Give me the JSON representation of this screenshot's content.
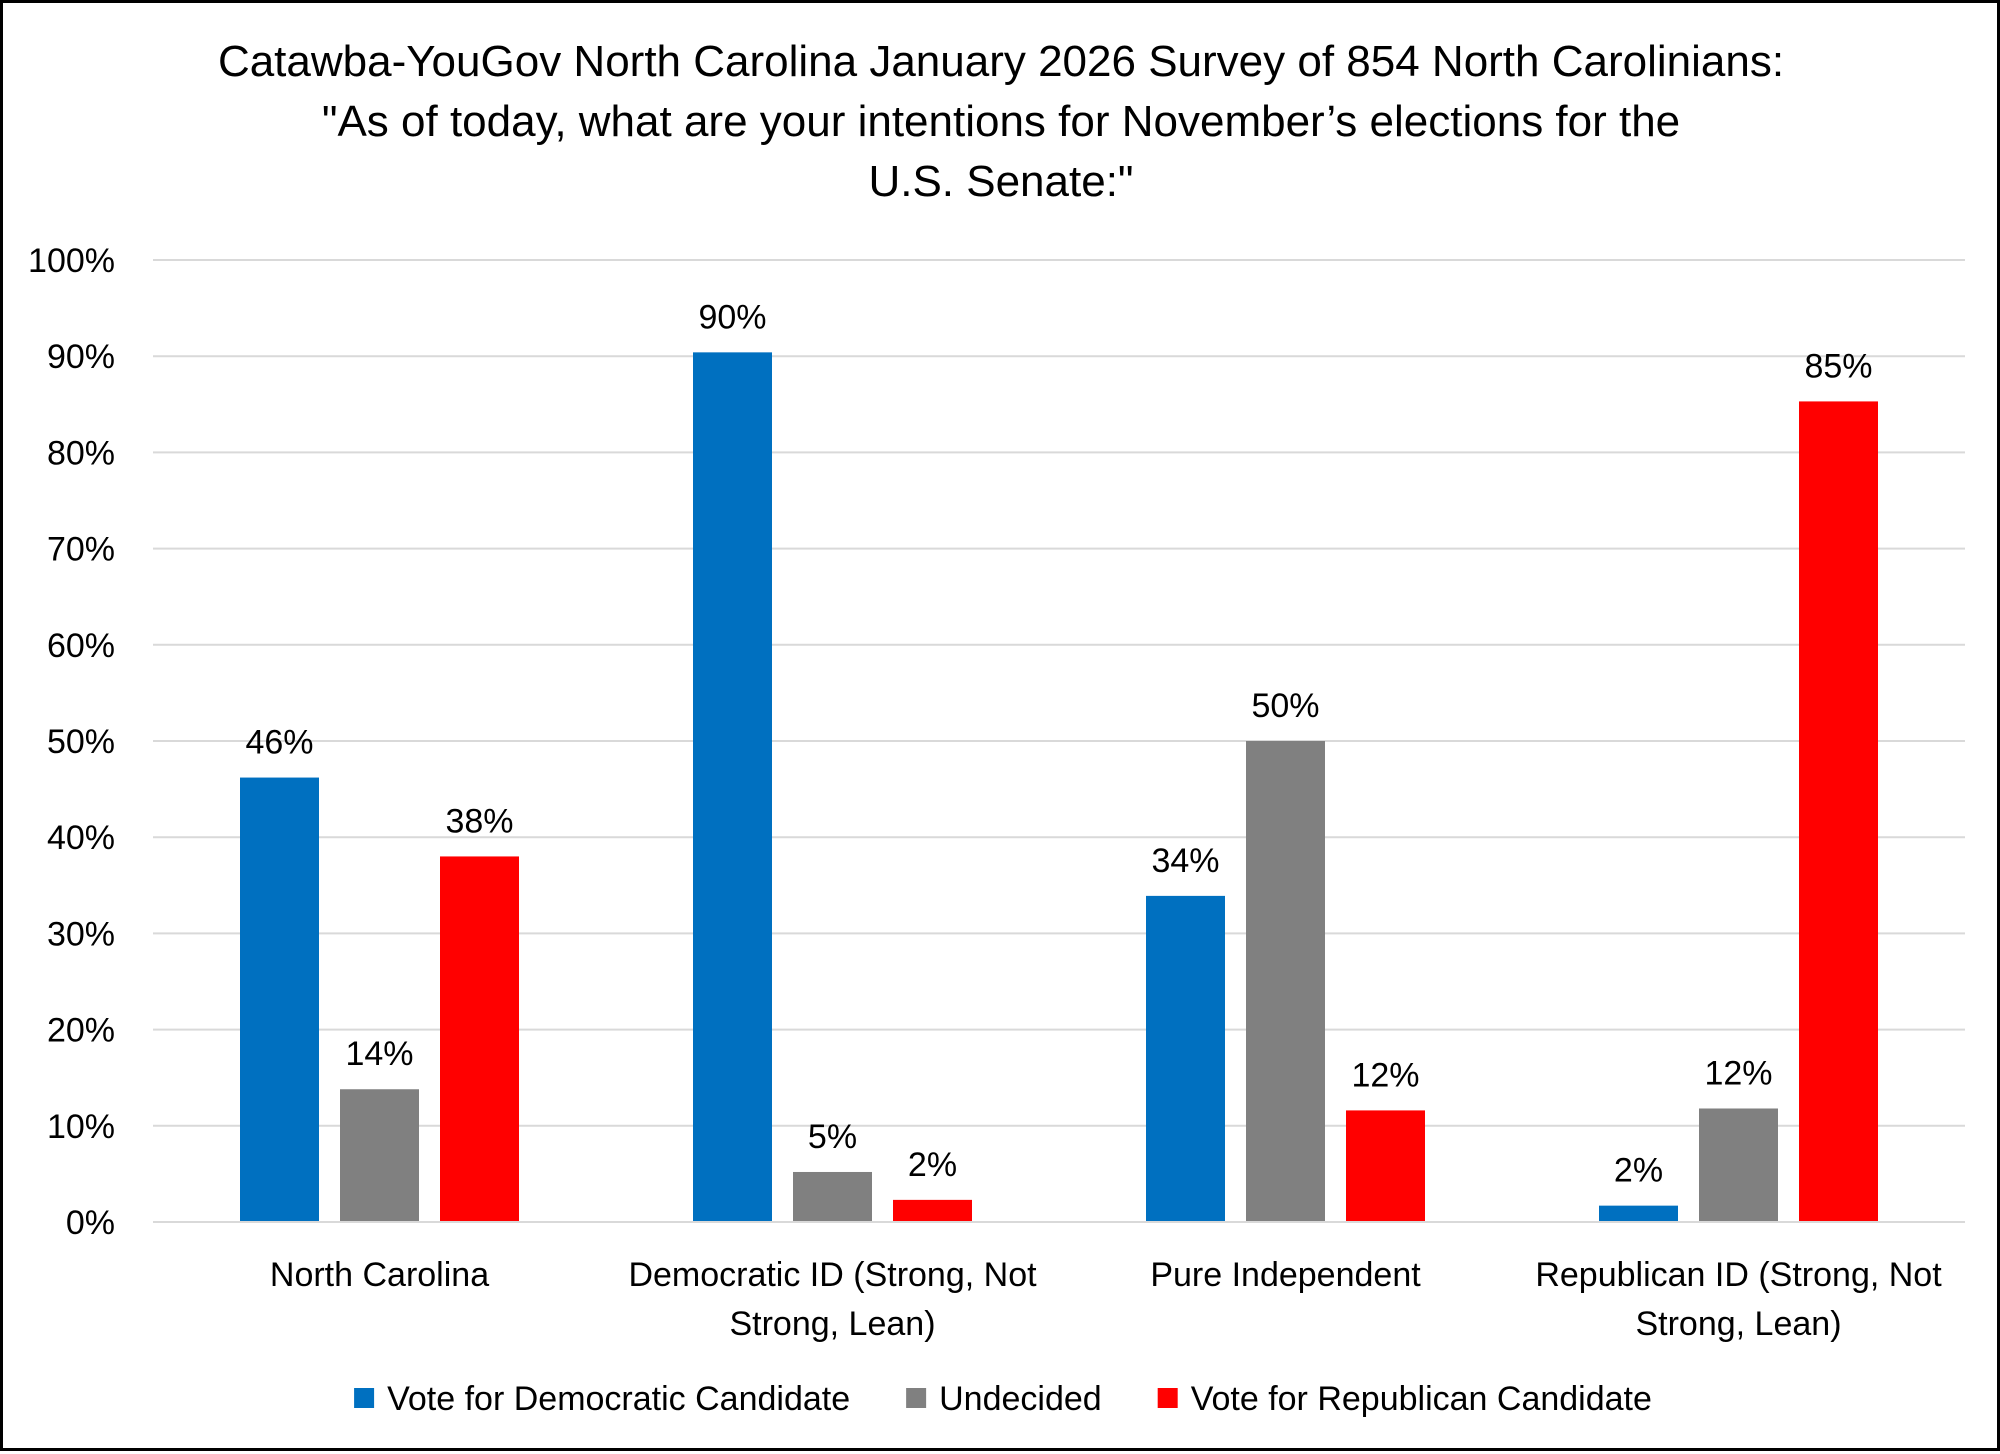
{
  "chart_data": {
    "type": "bar",
    "title": [
      "Catawba-YouGov North Carolina January 2026 Survey of 854 North Carolinians:",
      "\"As of today, what are your intentions for November’s elections for the",
      "U.S. Senate:\""
    ],
    "categories": [
      [
        "North Carolina"
      ],
      [
        "Democratic ID (Strong, Not",
        "Strong, Lean)"
      ],
      [
        "Pure Independent"
      ],
      [
        "Republican ID (Strong, Not",
        "Strong, Lean)"
      ]
    ],
    "series": [
      {
        "name": "Vote for Democratic Candidate",
        "color": "#0070C0",
        "values": [
          46.2,
          90.4,
          33.9,
          1.7
        ],
        "labels": [
          "46%",
          "90%",
          "34%",
          "2%"
        ]
      },
      {
        "name": "Undecided",
        "color": "#808080",
        "values": [
          13.8,
          5.2,
          50.0,
          11.8
        ],
        "labels": [
          "14%",
          "5%",
          "50%",
          "12%"
        ]
      },
      {
        "name": "Vote for Republican Candidate",
        "color": "#FF0000",
        "values": [
          38.0,
          2.3,
          11.6,
          85.3
        ],
        "labels": [
          "38%",
          "2%",
          "12%",
          "85%"
        ]
      }
    ],
    "ylim": [
      0,
      100
    ],
    "yticks": [
      0,
      10,
      20,
      30,
      40,
      50,
      60,
      70,
      80,
      90,
      100
    ],
    "ytick_labels": [
      "0%",
      "10%",
      "20%",
      "30%",
      "40%",
      "50%",
      "60%",
      "70%",
      "80%",
      "90%",
      "100%"
    ],
    "xlabel": "",
    "ylabel": "",
    "grid": true,
    "legend_position": "bottom",
    "gridline_color": "#D9D9D9",
    "axis_color": "#D9D9D9"
  }
}
